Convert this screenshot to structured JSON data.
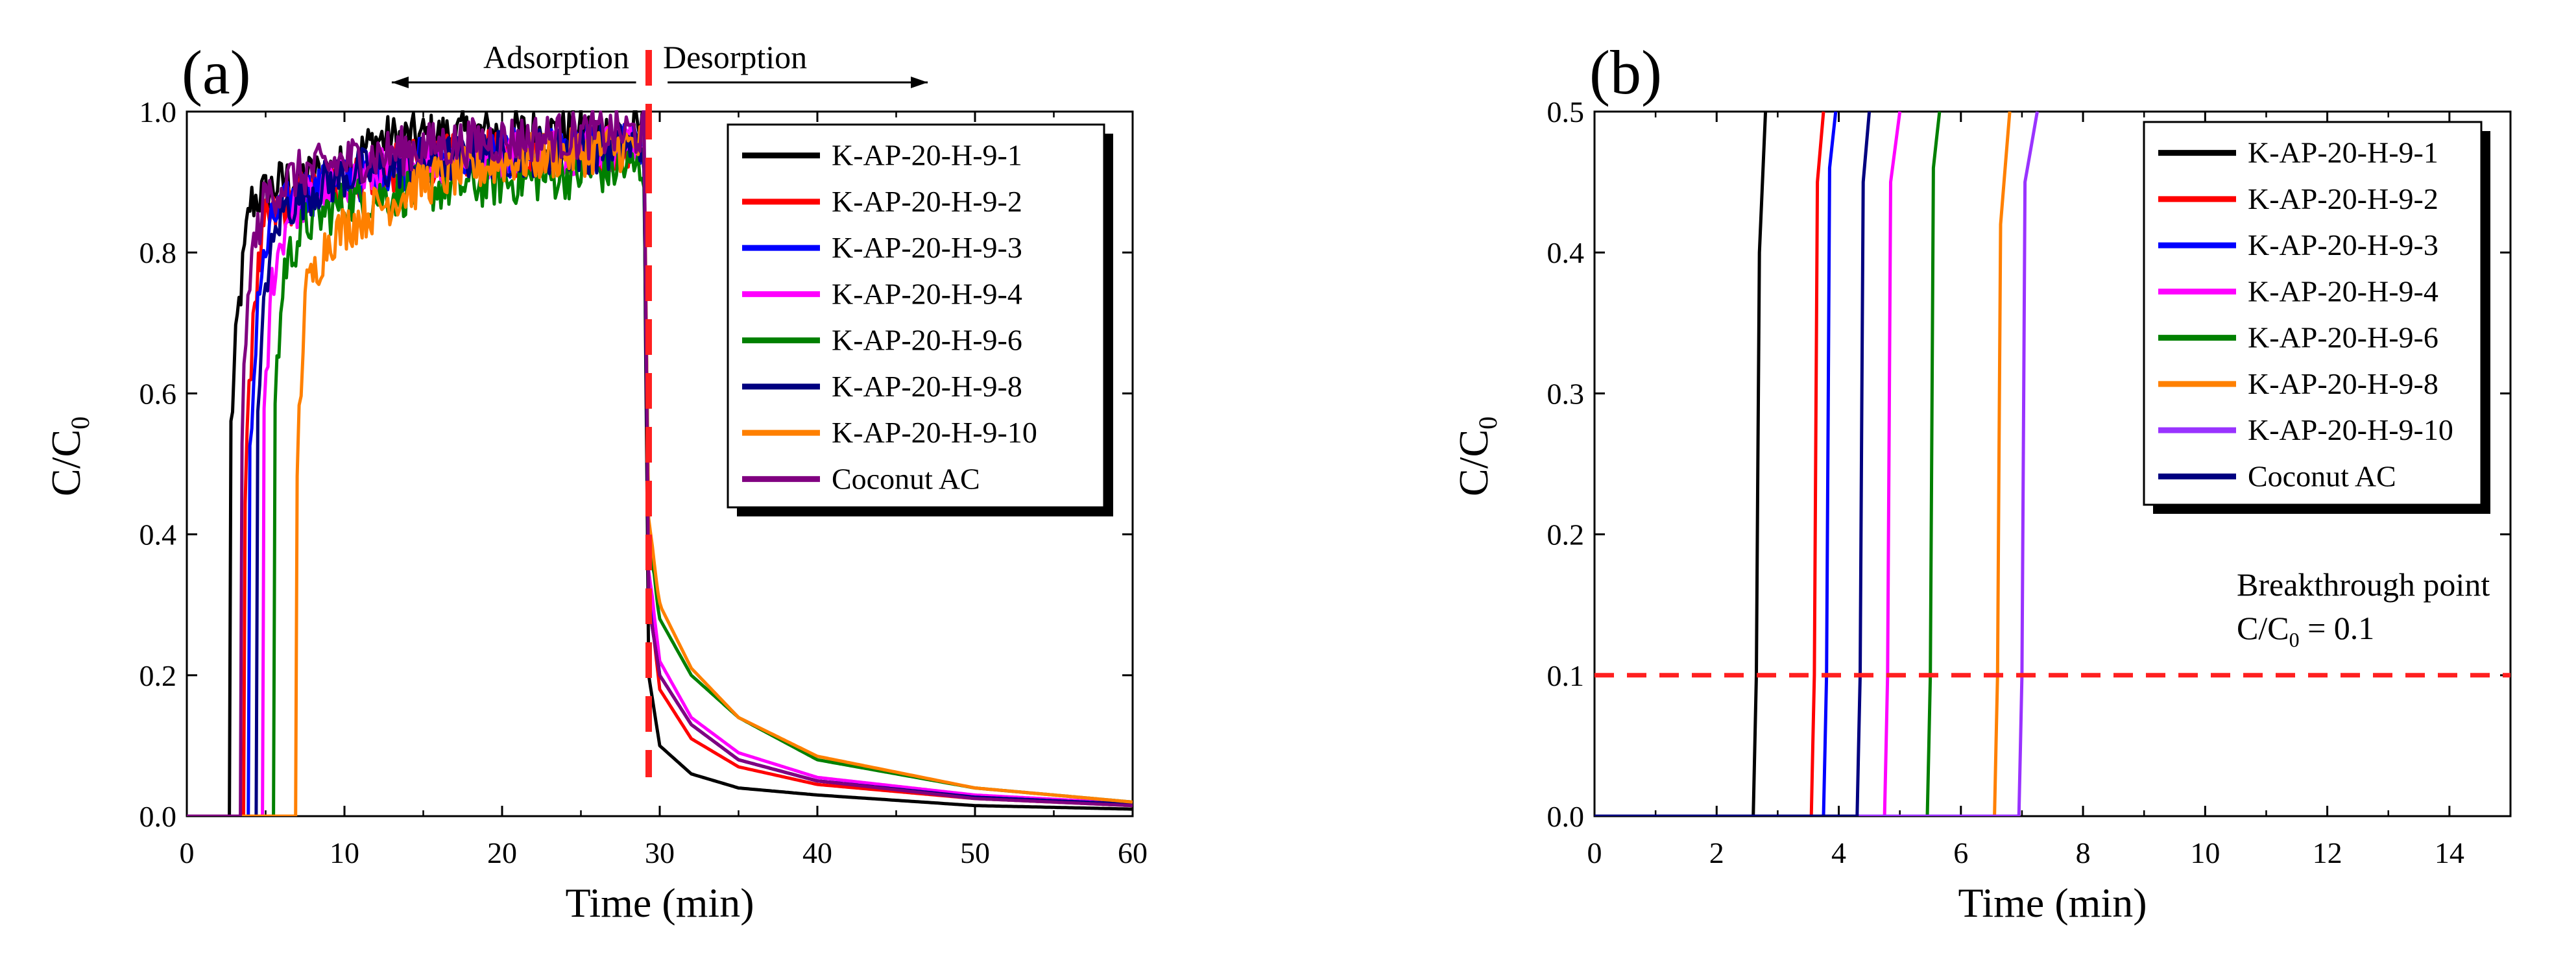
{
  "figure": {
    "description_labels": [
      "(a)",
      "(b)"
    ]
  },
  "chart_data": [
    {
      "type": "line",
      "panel_label": "(a)",
      "xlabel": "Time (min)",
      "ylabel_main": "C/C",
      "ylabel_sub": "0",
      "xlim": [
        0,
        60
      ],
      "ylim": [
        0,
        1.0
      ],
      "xticks": [
        0,
        10,
        20,
        30,
        40,
        50,
        60
      ],
      "yticks": [
        0.0,
        0.2,
        0.4,
        0.6,
        0.8,
        1.0
      ],
      "xtick_labels": [
        "0",
        "10",
        "20",
        "30",
        "40",
        "50",
        "60"
      ],
      "ytick_labels": [
        "0.0",
        "0.2",
        "0.4",
        "0.6",
        "0.8",
        "1.0"
      ],
      "legend_position": "top-right",
      "annotations": {
        "adsorption_label": "Adsorption",
        "desorption_label": "Desorption",
        "switch_time": 29.3,
        "adsorption_arrow_from": 28.5,
        "adsorption_arrow_to": 13,
        "desorption_arrow_from": 30.5,
        "desorption_arrow_to": 47
      },
      "switch_color": "#ff2020",
      "series": [
        {
          "name": "K-AP-20-H-9-1",
          "color": "#000000",
          "values": [
            [
              0,
              0
            ],
            [
              2.7,
              0
            ],
            [
              2.8,
              0.55
            ],
            [
              3.2,
              0.7
            ],
            [
              4.0,
              0.87
            ],
            [
              6,
              0.9
            ],
            [
              10,
              0.92
            ],
            [
              12,
              0.96
            ],
            [
              20,
              0.97
            ],
            [
              28,
              0.97
            ],
            [
              29.0,
              0.97
            ],
            [
              29.3,
              0.2
            ],
            [
              30,
              0.1
            ],
            [
              32,
              0.06
            ],
            [
              35,
              0.04
            ],
            [
              40,
              0.03
            ],
            [
              50,
              0.015
            ],
            [
              60,
              0.01
            ]
          ]
        },
        {
          "name": "K-AP-20-H-9-2",
          "color": "#ff0000",
          "values": [
            [
              0,
              0
            ],
            [
              3.6,
              0
            ],
            [
              3.7,
              0.45
            ],
            [
              4.2,
              0.72
            ],
            [
              5.0,
              0.84
            ],
            [
              7,
              0.88
            ],
            [
              10,
              0.9
            ],
            [
              15,
              0.93
            ],
            [
              20,
              0.94
            ],
            [
              28,
              0.95
            ],
            [
              29.0,
              0.95
            ],
            [
              29.3,
              0.32
            ],
            [
              30,
              0.18
            ],
            [
              32,
              0.11
            ],
            [
              35,
              0.07
            ],
            [
              40,
              0.045
            ],
            [
              50,
              0.025
            ],
            [
              60,
              0.015
            ]
          ]
        },
        {
          "name": "K-AP-20-H-9-3",
          "color": "#0000ff",
          "values": [
            [
              0,
              0
            ],
            [
              3.9,
              0
            ],
            [
              4.0,
              0.5
            ],
            [
              4.5,
              0.74
            ],
            [
              5.5,
              0.85
            ],
            [
              7,
              0.88
            ],
            [
              10,
              0.9
            ],
            [
              15,
              0.93
            ],
            [
              20,
              0.94
            ],
            [
              28,
              0.95
            ],
            [
              29.0,
              0.95
            ],
            [
              29.3,
              0.33
            ],
            [
              30,
              0.2
            ],
            [
              32,
              0.13
            ],
            [
              35,
              0.08
            ],
            [
              40,
              0.05
            ],
            [
              50,
              0.027
            ],
            [
              60,
              0.017
            ]
          ]
        },
        {
          "name": "K-AP-20-H-9-4",
          "color": "#ff00ff",
          "values": [
            [
              0,
              0
            ],
            [
              4.8,
              0
            ],
            [
              4.9,
              0.55
            ],
            [
              5.4,
              0.76
            ],
            [
              6.5,
              0.86
            ],
            [
              8,
              0.88
            ],
            [
              10,
              0.9
            ],
            [
              15,
              0.93
            ],
            [
              20,
              0.94
            ],
            [
              28,
              0.95
            ],
            [
              29.0,
              0.95
            ],
            [
              29.3,
              0.35
            ],
            [
              30,
              0.22
            ],
            [
              32,
              0.14
            ],
            [
              35,
              0.09
            ],
            [
              40,
              0.055
            ],
            [
              50,
              0.03
            ],
            [
              60,
              0.018
            ]
          ]
        },
        {
          "name": "K-AP-20-H-9-6",
          "color": "#008000",
          "values": [
            [
              0,
              0
            ],
            [
              5.5,
              0
            ],
            [
              5.6,
              0.6
            ],
            [
              6.2,
              0.78
            ],
            [
              7.5,
              0.84
            ],
            [
              10,
              0.87
            ],
            [
              15,
              0.89
            ],
            [
              20,
              0.9
            ],
            [
              28,
              0.92
            ],
            [
              29.0,
              0.92
            ],
            [
              29.3,
              0.4
            ],
            [
              30,
              0.28
            ],
            [
              32,
              0.2
            ],
            [
              35,
              0.14
            ],
            [
              40,
              0.08
            ],
            [
              50,
              0.04
            ],
            [
              60,
              0.02
            ]
          ]
        },
        {
          "name": "K-AP-20-H-9-8",
          "color": "#000080",
          "values": [
            [
              0,
              0
            ],
            [
              4.4,
              0
            ],
            [
              4.5,
              0.55
            ],
            [
              5.0,
              0.76
            ],
            [
              6,
              0.86
            ],
            [
              8,
              0.89
            ],
            [
              10,
              0.91
            ],
            [
              15,
              0.93
            ],
            [
              20,
              0.94
            ],
            [
              28,
              0.95
            ],
            [
              29.0,
              0.95
            ],
            [
              29.3,
              0.3
            ],
            [
              30,
              0.2
            ],
            [
              32,
              0.13
            ],
            [
              35,
              0.08
            ],
            [
              40,
              0.05
            ],
            [
              50,
              0.027
            ],
            [
              60,
              0.017
            ]
          ]
        },
        {
          "name": "K-AP-20-H-9-10",
          "color": "#ff8000",
          "values": [
            [
              0,
              0
            ],
            [
              6.9,
              0
            ],
            [
              7.0,
              0.5
            ],
            [
              7.5,
              0.74
            ],
            [
              9,
              0.82
            ],
            [
              11,
              0.85
            ],
            [
              15,
              0.9
            ],
            [
              20,
              0.93
            ],
            [
              28,
              0.95
            ],
            [
              29.0,
              0.95
            ],
            [
              29.3,
              0.42
            ],
            [
              30,
              0.3
            ],
            [
              32,
              0.21
            ],
            [
              35,
              0.14
            ],
            [
              40,
              0.085
            ],
            [
              50,
              0.04
            ],
            [
              60,
              0.02
            ]
          ]
        },
        {
          "name": "Coconut AC",
          "color": "#800080",
          "values": [
            [
              0,
              0
            ],
            [
              3.4,
              0
            ],
            [
              3.5,
              0.55
            ],
            [
              4.0,
              0.78
            ],
            [
              5.0,
              0.88
            ],
            [
              7,
              0.91
            ],
            [
              10,
              0.93
            ],
            [
              15,
              0.95
            ],
            [
              20,
              0.96
            ],
            [
              28,
              0.97
            ],
            [
              29.0,
              0.97
            ],
            [
              29.3,
              0.3
            ],
            [
              30,
              0.2
            ],
            [
              32,
              0.13
            ],
            [
              35,
              0.08
            ],
            [
              40,
              0.05
            ],
            [
              50,
              0.025
            ],
            [
              60,
              0.015
            ]
          ]
        }
      ]
    },
    {
      "type": "line",
      "panel_label": "(b)",
      "xlabel": "Time (min)",
      "ylabel_main": "C/C",
      "ylabel_sub": "0",
      "xlim": [
        0,
        15
      ],
      "ylim": [
        0,
        0.5
      ],
      "xticks": [
        0,
        2,
        4,
        6,
        8,
        10,
        12,
        14
      ],
      "yticks": [
        0.0,
        0.1,
        0.2,
        0.3,
        0.4,
        0.5
      ],
      "xtick_labels": [
        "0",
        "2",
        "4",
        "6",
        "8",
        "10",
        "12",
        "14"
      ],
      "ytick_labels": [
        "0.0",
        "0.1",
        "0.2",
        "0.3",
        "0.4",
        "0.5"
      ],
      "legend_position": "top-right",
      "breakthrough": {
        "line1": "Breakthrough point",
        "line2_main": "C/C",
        "line2_sub": "0",
        "line2_tail": " = 0.1",
        "value": 0.1,
        "color": "#ff2020"
      },
      "series": [
        {
          "name": "K-AP-20-H-9-1",
          "color": "#000000",
          "values": [
            [
              0,
              0
            ],
            [
              2.6,
              0
            ],
            [
              2.65,
              0.1
            ],
            [
              2.7,
              0.4
            ],
            [
              2.8,
              0.5
            ]
          ]
        },
        {
          "name": "K-AP-20-H-9-2",
          "color": "#ff0000",
          "values": [
            [
              0,
              0
            ],
            [
              3.55,
              0
            ],
            [
              3.6,
              0.1
            ],
            [
              3.65,
              0.45
            ],
            [
              3.75,
              0.5
            ]
          ]
        },
        {
          "name": "K-AP-20-H-9-3",
          "color": "#0000ff",
          "values": [
            [
              0,
              0
            ],
            [
              3.75,
              0
            ],
            [
              3.8,
              0.1
            ],
            [
              3.85,
              0.46
            ],
            [
              3.95,
              0.5
            ]
          ]
        },
        {
          "name": "K-AP-20-H-9-4",
          "color": "#ff00ff",
          "values": [
            [
              0,
              0
            ],
            [
              4.75,
              0
            ],
            [
              4.8,
              0.1
            ],
            [
              4.85,
              0.45
            ],
            [
              5.0,
              0.5
            ]
          ]
        },
        {
          "name": "K-AP-20-H-9-6",
          "color": "#008000",
          "values": [
            [
              0,
              0
            ],
            [
              5.45,
              0
            ],
            [
              5.5,
              0.1
            ],
            [
              5.55,
              0.46
            ],
            [
              5.65,
              0.5
            ]
          ]
        },
        {
          "name": "K-AP-20-H-9-8",
          "color": "#ff8000",
          "values": [
            [
              0,
              0
            ],
            [
              6.55,
              0
            ],
            [
              6.6,
              0.1
            ],
            [
              6.65,
              0.42
            ],
            [
              6.8,
              0.5
            ]
          ]
        },
        {
          "name": "K-AP-20-H-9-10",
          "color": "#9933ff",
          "values": [
            [
              0,
              0
            ],
            [
              6.95,
              0
            ],
            [
              7.0,
              0.1
            ],
            [
              7.05,
              0.45
            ],
            [
              7.25,
              0.5
            ]
          ]
        },
        {
          "name": "Coconut AC",
          "color": "#000080",
          "values": [
            [
              0,
              0
            ],
            [
              4.3,
              0
            ],
            [
              4.35,
              0.1
            ],
            [
              4.4,
              0.45
            ],
            [
              4.5,
              0.5
            ]
          ]
        }
      ]
    }
  ]
}
